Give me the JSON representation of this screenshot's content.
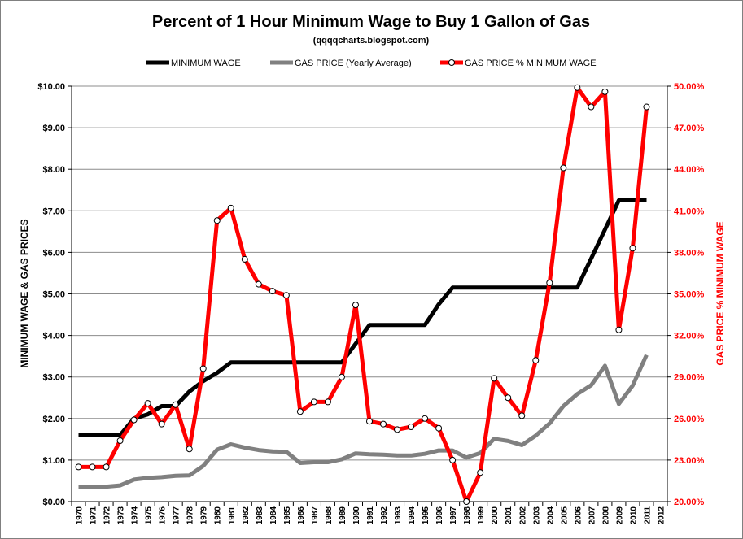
{
  "chart_data": {
    "type": "line",
    "title": "Percent of 1 Hour Minimum Wage to Buy 1 Gallon of Gas",
    "subtitle": "(qqqqcharts.blogspot.com)",
    "ylabel_left": "MINIMUM  WAGE  &  GAS  PRICES",
    "ylabel_right": "GAS PRICE % MINIMUM  WAGE",
    "legend_position": "top",
    "grid": true,
    "x": [
      "1970",
      "1971",
      "1972",
      "1973",
      "1974",
      "1975",
      "1976",
      "1977",
      "1978",
      "1979",
      "1980",
      "1981",
      "1982",
      "1983",
      "1984",
      "1985",
      "1986",
      "1987",
      "1988",
      "1989",
      "1990",
      "1991",
      "1992",
      "1993",
      "1994",
      "1995",
      "1996",
      "1997",
      "1998",
      "1999",
      "2000",
      "2001",
      "2002",
      "2003",
      "2004",
      "2005",
      "2006",
      "2007",
      "2008",
      "2009",
      "2010",
      "2011",
      "2012"
    ],
    "y_left": {
      "min": 0,
      "max": 10,
      "ticks": [
        "$0.00",
        "$1.00",
        "$2.00",
        "$3.00",
        "$4.00",
        "$5.00",
        "$6.00",
        "$7.00",
        "$8.00",
        "$9.00",
        "$10.00"
      ]
    },
    "y_right": {
      "min": 20,
      "max": 50,
      "ticks": [
        "20.00%",
        "23.00%",
        "26.00%",
        "29.00%",
        "32.00%",
        "35.00%",
        "38.00%",
        "41.00%",
        "44.00%",
        "47.00%",
        "50.00%"
      ]
    },
    "series": [
      {
        "name": "MINIMUM  WAGE",
        "axis": "left",
        "color": "#000000",
        "markers": false,
        "values": [
          1.6,
          1.6,
          1.6,
          1.6,
          2.0,
          2.1,
          2.3,
          2.3,
          2.65,
          2.9,
          3.1,
          3.35,
          3.35,
          3.35,
          3.35,
          3.35,
          3.35,
          3.35,
          3.35,
          3.35,
          3.8,
          4.25,
          4.25,
          4.25,
          4.25,
          4.25,
          4.75,
          5.15,
          5.15,
          5.15,
          5.15,
          5.15,
          5.15,
          5.15,
          5.15,
          5.15,
          5.15,
          5.85,
          6.55,
          7.25,
          7.25,
          7.25,
          null
        ]
      },
      {
        "name": "GAS PRICE (Yearly Average)",
        "axis": "left",
        "color": "#808080",
        "markers": false,
        "values": [
          0.36,
          0.36,
          0.36,
          0.39,
          0.53,
          0.57,
          0.59,
          0.62,
          0.63,
          0.86,
          1.25,
          1.38,
          1.3,
          1.24,
          1.21,
          1.2,
          0.93,
          0.95,
          0.95,
          1.02,
          1.16,
          1.14,
          1.13,
          1.11,
          1.11,
          1.15,
          1.23,
          1.23,
          1.06,
          1.17,
          1.51,
          1.46,
          1.36,
          1.59,
          1.88,
          2.3,
          2.59,
          2.8,
          3.27,
          2.35,
          2.79,
          3.53,
          null
        ]
      },
      {
        "name": "GAS PRICE % MINIMUM  WAGE",
        "axis": "right",
        "color": "#ff0000",
        "markers": true,
        "values": [
          22.5,
          22.5,
          22.5,
          24.4,
          25.9,
          27.1,
          25.6,
          27.0,
          23.8,
          29.6,
          40.3,
          41.2,
          37.5,
          35.7,
          35.2,
          34.9,
          26.5,
          27.2,
          27.2,
          29.0,
          34.2,
          25.8,
          25.6,
          25.2,
          25.4,
          26.0,
          25.3,
          23.0,
          20.0,
          22.1,
          28.9,
          27.5,
          26.2,
          30.2,
          35.8,
          44.1,
          49.9,
          48.5,
          49.6,
          32.4,
          38.3,
          48.5,
          null
        ]
      }
    ]
  }
}
